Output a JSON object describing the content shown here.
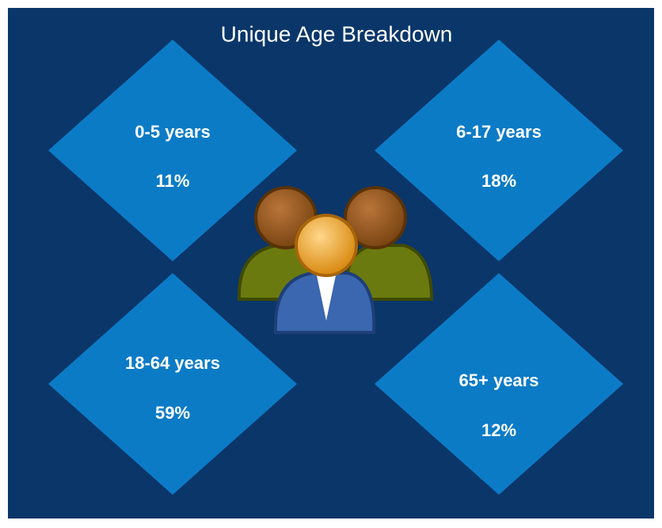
{
  "title": "Unique Age Breakdown",
  "groups": [
    {
      "label": "0-5 years",
      "value": "11%"
    },
    {
      "label": "6-17 years",
      "value": "18%"
    },
    {
      "label": "18-64 years",
      "value": "59%"
    },
    {
      "label": "65+ years",
      "value": "12%"
    }
  ]
}
